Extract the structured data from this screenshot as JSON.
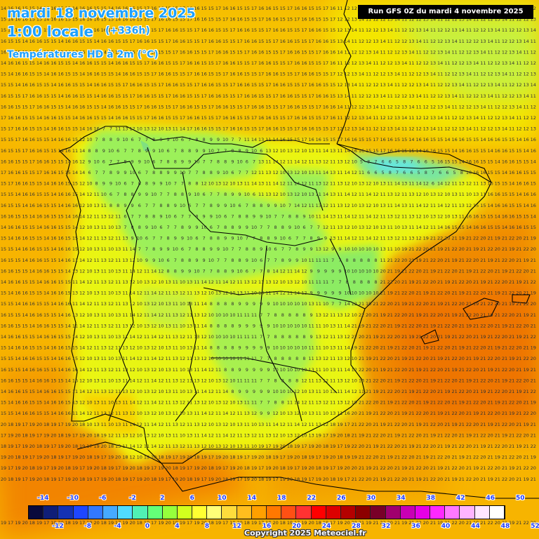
{
  "header": {
    "date": "mardi 18 novembre 2025",
    "time": "1:00 locale",
    "lead": "(+336h)",
    "variable": "Températures HD à 2m (°C)"
  },
  "run_label": "Run GFS 0Z du mardi 4 novembre 2025",
  "copyright": "Copyright 2025 Meteociel.fr",
  "legend": {
    "top_labels": [
      "-14",
      "-10",
      "-6",
      "-2",
      "2",
      "6",
      "10",
      "14",
      "18",
      "22",
      "26",
      "30",
      "34",
      "38",
      "42",
      "46",
      "50"
    ],
    "bottom_labels": [
      "-12",
      "-8",
      "-4",
      "0",
      "4",
      "8",
      "12",
      "16",
      "20",
      "24",
      "28",
      "32",
      "36",
      "40",
      "44",
      "48",
      "52"
    ],
    "colors": [
      "#0a0a3c",
      "#0f1e78",
      "#1432b4",
      "#1e46ff",
      "#3278ff",
      "#46aaff",
      "#50dcff",
      "#50f0b4",
      "#64ff78",
      "#96ff3c",
      "#d2ff1e",
      "#ffff32",
      "#ffff78",
      "#ffdc3c",
      "#ffbe1e",
      "#ffa000",
      "#ff7800",
      "#ff5014",
      "#ff3232",
      "#ff0000",
      "#dc0000",
      "#b40000",
      "#8c0000",
      "#780028",
      "#a0006e",
      "#c800b4",
      "#e600e6",
      "#ff28ff",
      "#ff78ff",
      "#ffb4ff",
      "#ffe6ff",
      "#ffffff"
    ]
  },
  "map": {
    "region": "Iberian Peninsula",
    "sea_temperature_range_c": [
      13,
      21
    ],
    "land_temperature_range_c": [
      4,
      17
    ]
  }
}
